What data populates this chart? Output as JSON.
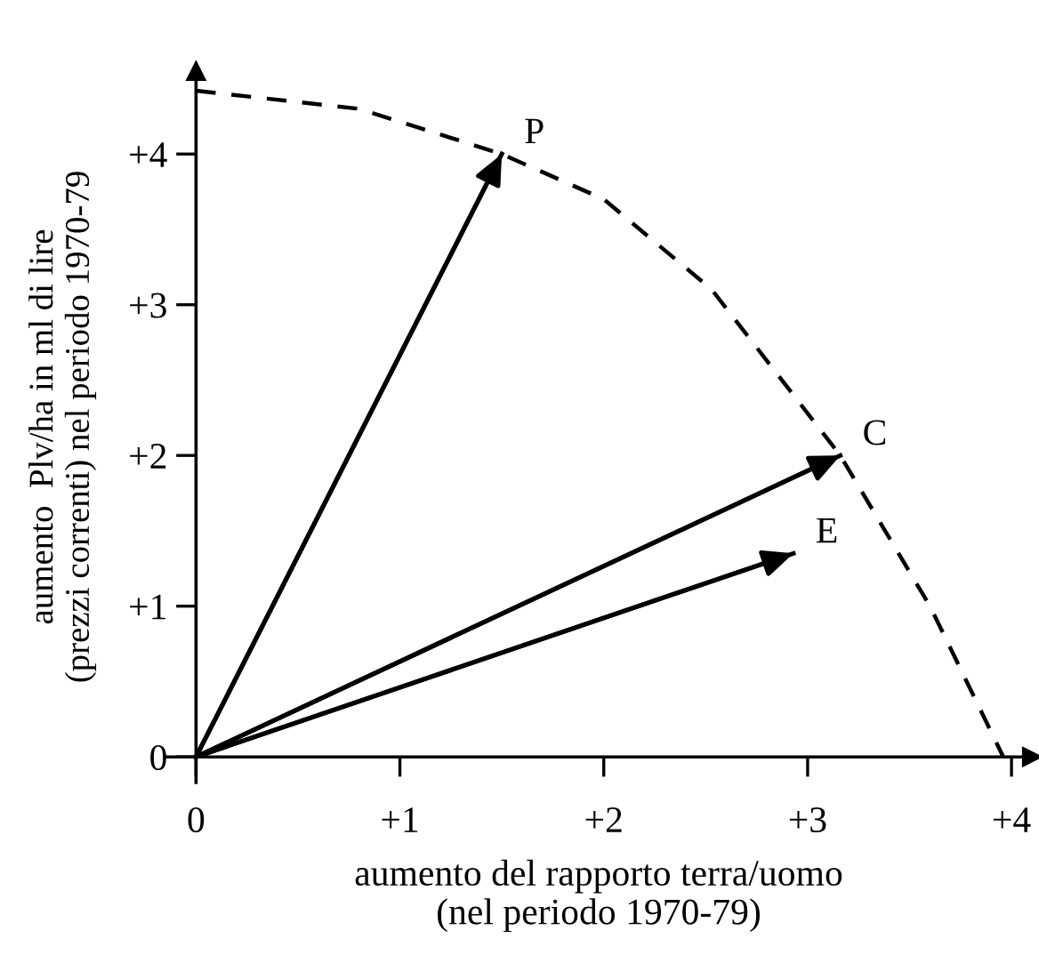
{
  "chart_data": {
    "type": "line",
    "xlabel": "aumento del rapporto terra/uomo\n(nel periodo 1970-79)",
    "ylabel": "aumento  Plv/ha in ml di lire\n(prezzi correnti) nel periodo 1970-79",
    "xlim": [
      -0.15,
      4.1
    ],
    "ylim": [
      -0.17,
      4.55
    ],
    "xticks": [
      0,
      {
        "value": 1,
        "label": "+1"
      },
      {
        "value": 2,
        "label": "+2"
      },
      {
        "value": 3,
        "label": "+3"
      },
      {
        "value": 4,
        "label": "+4"
      }
    ],
    "yticks": [
      0,
      {
        "value": 1,
        "label": "+1"
      },
      {
        "value": 2,
        "label": "+2"
      },
      {
        "value": 3,
        "label": "+3"
      },
      {
        "value": 4,
        "label": "+4"
      }
    ],
    "grid": false,
    "marker": "none",
    "series": [
      {
        "name": "P",
        "color": "#000000",
        "x": [
          0,
          1.5
        ],
        "values": [
          0,
          4.0
        ],
        "line_style": "solid"
      },
      {
        "name": "C",
        "color": "#000000",
        "x": [
          0,
          3.16
        ],
        "values": [
          0,
          2.0
        ],
        "line_style": "solid"
      },
      {
        "name": "E",
        "color": "#000000",
        "x": [
          0,
          2.93
        ],
        "values": [
          0,
          1.35
        ],
        "line_style": "solid"
      },
      {
        "color": "#000000",
        "x": [
          0,
          0.8,
          1.5,
          2.0,
          2.53,
          3.16,
          3.6,
          3.96
        ],
        "values": [
          4.42,
          4.3,
          4.0,
          3.7,
          3.1,
          2.0,
          1.0,
          0
        ],
        "line_style": "dashed"
      }
    ]
  }
}
